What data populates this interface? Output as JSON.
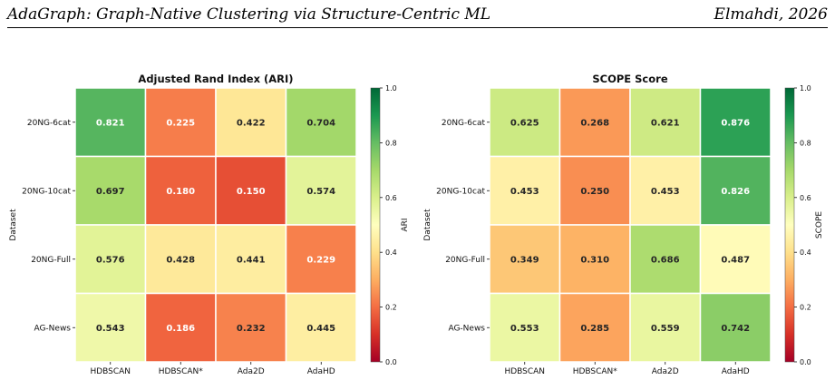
{
  "header": {
    "title": "AdaGraph: Graph-Native Clustering via Structure-Centric ML",
    "author_year": "Elmahdi, 2026"
  },
  "chart_data": [
    {
      "type": "heatmap",
      "title": "Adjusted Rand Index (ARI)",
      "xlabel": "",
      "ylabel": "Dataset",
      "colorbar_label": "ARI",
      "columns": [
        "HDBSCAN",
        "HDBSCAN*",
        "Ada2D",
        "AdaHD"
      ],
      "rows": [
        "20NG-6cat",
        "20NG-10cat",
        "20NG-Full",
        "AG-News"
      ],
      "values": [
        [
          0.821,
          0.225,
          0.422,
          0.704
        ],
        [
          0.697,
          0.18,
          0.15,
          0.574
        ],
        [
          0.576,
          0.428,
          0.441,
          0.229
        ],
        [
          0.543,
          0.186,
          0.232,
          0.445
        ]
      ],
      "colormap": "RdYlGn",
      "vmin": 0.0,
      "vmax": 1.0,
      "colorbar_ticks": [
        "0.0",
        "0.2",
        "0.4",
        "0.6",
        "0.8",
        "1.0"
      ]
    },
    {
      "type": "heatmap",
      "title": "SCOPE Score",
      "xlabel": "",
      "ylabel": "Dataset",
      "colorbar_label": "SCOPE",
      "columns": [
        "HDBSCAN",
        "HDBSCAN*",
        "Ada2D",
        "AdaHD"
      ],
      "rows": [
        "20NG-6cat",
        "20NG-10cat",
        "20NG-Full",
        "AG-News"
      ],
      "values": [
        [
          0.625,
          0.268,
          0.621,
          0.876
        ],
        [
          0.453,
          0.25,
          0.453,
          0.826
        ],
        [
          0.349,
          0.31,
          0.686,
          0.487
        ],
        [
          0.553,
          0.285,
          0.559,
          0.742
        ]
      ],
      "colormap": "RdYlGn",
      "vmin": 0.0,
      "vmax": 1.0,
      "colorbar_ticks": [
        "0.0",
        "0.2",
        "0.4",
        "0.6",
        "0.8",
        "1.0"
      ]
    }
  ]
}
